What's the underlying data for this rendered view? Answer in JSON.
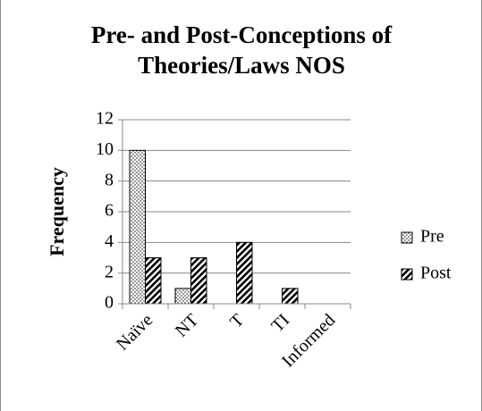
{
  "chart_data": {
    "type": "bar",
    "title": "Pre- and Post-Conceptions of Theories/Laws NOS",
    "ylabel": "Frequency",
    "categories": [
      "Naïve",
      "NT",
      "T",
      "TI",
      "Informed"
    ],
    "series": [
      {
        "name": "Pre",
        "color": "#000000",
        "pattern": "dots",
        "values": [
          10,
          1,
          0,
          0,
          0
        ]
      },
      {
        "name": "Post",
        "color": "#000000",
        "pattern": "hatch",
        "values": [
          3,
          3,
          4,
          1,
          0
        ]
      }
    ],
    "ylim": [
      0,
      12
    ],
    "yticks": [
      0,
      2,
      4,
      6,
      8,
      10,
      12
    ],
    "grid": true,
    "legend": "right"
  }
}
